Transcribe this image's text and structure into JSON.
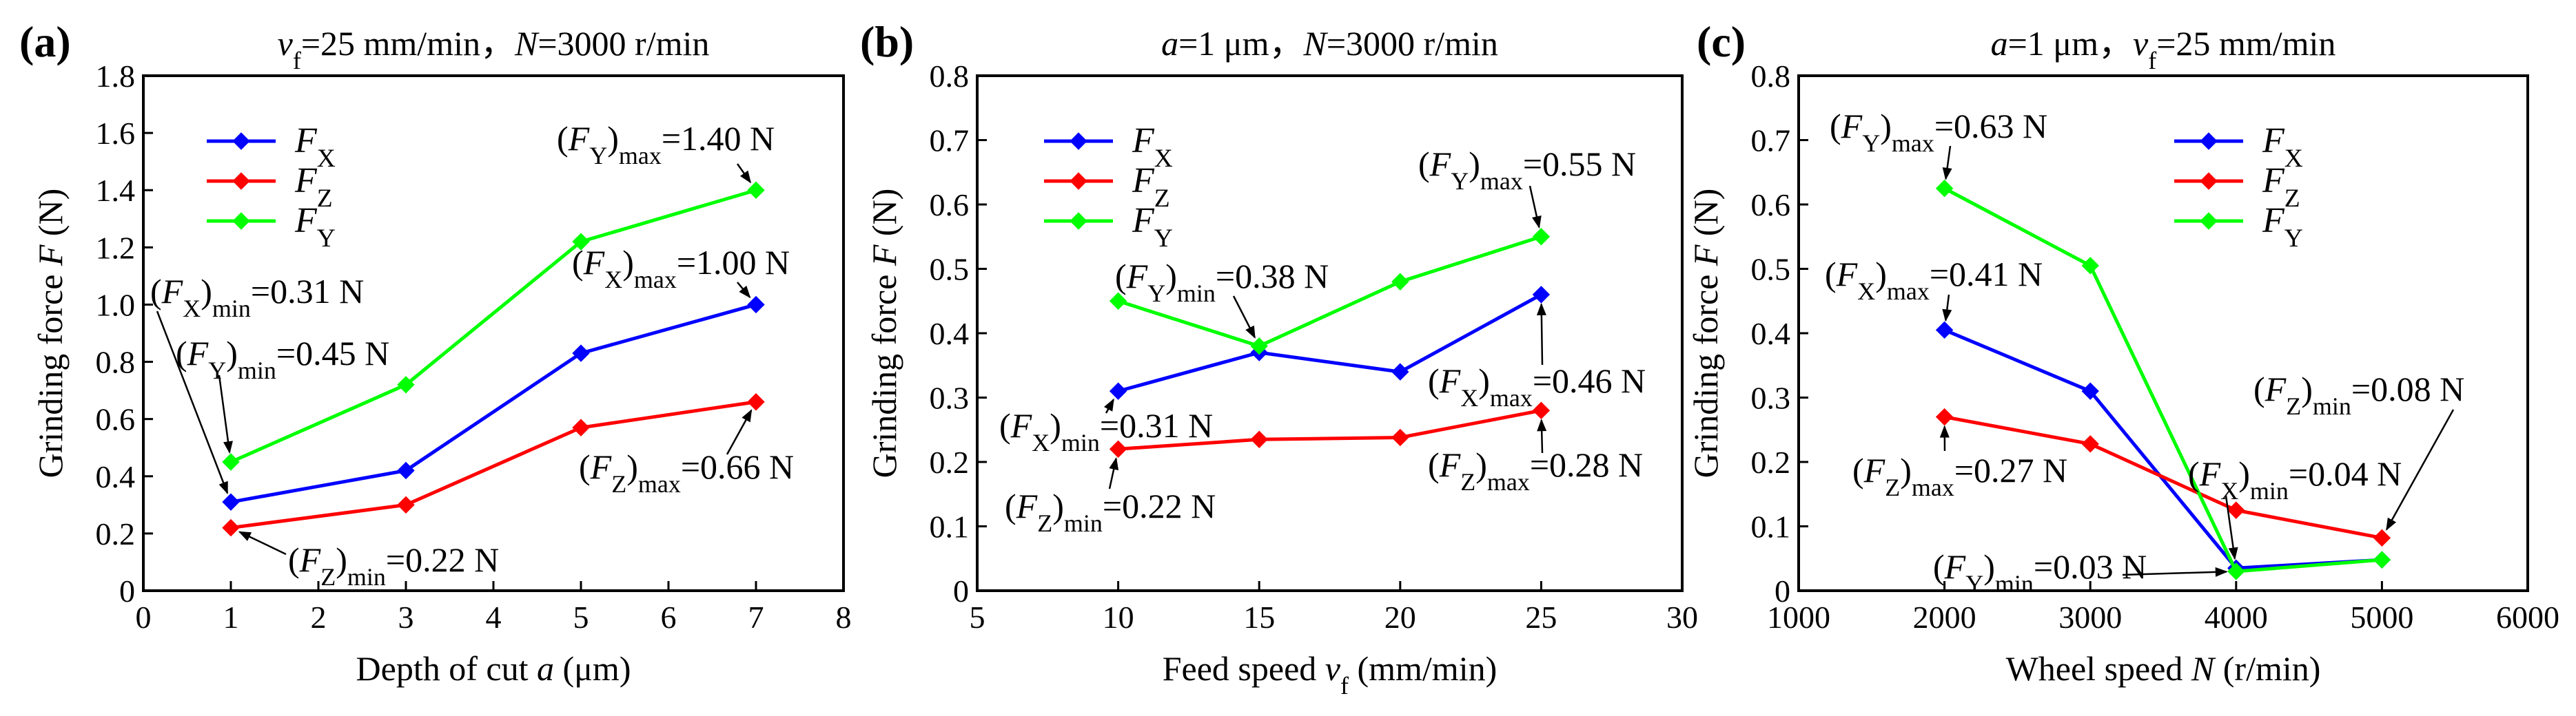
{
  "chart_data": [
    {
      "panel": "(a)",
      "type": "line",
      "title": "v_f=25 mm/min，N=3000 r/min",
      "title_parts": [
        {
          "t": "v",
          "italic": true
        },
        {
          "t": "f",
          "sub": true
        },
        {
          "t": "=25 mm/min，"
        },
        {
          "t": "N",
          "italic": true
        },
        {
          "t": "=3000 r/min"
        }
      ],
      "xlabel": "Depth of cut a (μm)",
      "xlabel_parts": [
        {
          "t": "Depth of cut "
        },
        {
          "t": "a",
          "italic": true
        },
        {
          "t": " (μm)"
        }
      ],
      "ylabel": "Grinding force F (N)",
      "ylabel_parts": [
        {
          "t": "Grinding force "
        },
        {
          "t": "F",
          "italic": true
        },
        {
          "t": " (N)"
        }
      ],
      "xlim": [
        0,
        8
      ],
      "ylim": [
        0,
        1.8
      ],
      "xticks": [
        0,
        1,
        2,
        3,
        4,
        5,
        6,
        7,
        8
      ],
      "yticks": [
        0,
        0.2,
        0.4,
        0.6,
        0.8,
        1.0,
        1.2,
        1.4,
        1.6,
        1.8
      ],
      "ytick_labels": [
        "0",
        "0.2",
        "0.4",
        "0.6",
        "0.8",
        "1.0",
        "1.2",
        "1.4",
        "1.6",
        "1.8"
      ],
      "xtick_labels": [
        "0",
        "1",
        "2",
        "3",
        "4",
        "5",
        "6",
        "7",
        "8"
      ],
      "x": [
        1,
        3,
        5,
        7
      ],
      "series": [
        {
          "name": "F_X",
          "sub": "X",
          "color": "#0000ff",
          "values": [
            0.31,
            0.42,
            0.83,
            1.0
          ]
        },
        {
          "name": "F_Z",
          "sub": "Z",
          "color": "#ff0000",
          "values": [
            0.22,
            0.3,
            0.57,
            0.66
          ]
        },
        {
          "name": "F_Y",
          "sub": "Y",
          "color": "#00ff00",
          "values": [
            0.45,
            0.72,
            1.22,
            1.4
          ]
        }
      ],
      "legend": "top-left",
      "annotations": [
        {
          "var": "F",
          "sub": "X",
          "kind": "min",
          "value": "=0.31 N"
        },
        {
          "var": "F",
          "sub": "Y",
          "kind": "min",
          "value": "=0.45 N"
        },
        {
          "var": "F",
          "sub": "Z",
          "kind": "min",
          "value": "=0.22 N"
        },
        {
          "var": "F",
          "sub": "Y",
          "kind": "max",
          "value": "=1.40 N"
        },
        {
          "var": "F",
          "sub": "X",
          "kind": "max",
          "value": "=1.00 N"
        },
        {
          "var": "F",
          "sub": "Z",
          "kind": "max",
          "value": "=0.66 N"
        }
      ]
    },
    {
      "panel": "(b)",
      "type": "line",
      "title": "a=1 μm，N=3000 r/min",
      "title_parts": [
        {
          "t": "a",
          "italic": true
        },
        {
          "t": "=1 μm，"
        },
        {
          "t": "N",
          "italic": true
        },
        {
          "t": "=3000 r/min"
        }
      ],
      "xlabel": "Feed speed v_f (mm/min)",
      "xlabel_parts": [
        {
          "t": "Feed speed "
        },
        {
          "t": "v",
          "italic": true
        },
        {
          "t": "f",
          "sub": true
        },
        {
          "t": " (mm/min)"
        }
      ],
      "ylabel": "Grinding force F (N)",
      "ylabel_parts": [
        {
          "t": "Grinding force "
        },
        {
          "t": "F",
          "italic": true
        },
        {
          "t": " (N)"
        }
      ],
      "xlim": [
        5,
        30
      ],
      "ylim": [
        0,
        0.8
      ],
      "xticks": [
        5,
        10,
        15,
        20,
        25,
        30
      ],
      "xtick_labels": [
        "5",
        "10",
        "15",
        "20",
        "25",
        "30"
      ],
      "yticks": [
        0,
        0.1,
        0.2,
        0.3,
        0.4,
        0.5,
        0.6,
        0.7,
        0.8
      ],
      "ytick_labels": [
        "0",
        "0.1",
        "0.2",
        "0.3",
        "0.4",
        "0.5",
        "0.6",
        "0.7",
        "0.8"
      ],
      "x": [
        10,
        15,
        20,
        25
      ],
      "series": [
        {
          "name": "F_X",
          "sub": "X",
          "color": "#0000ff",
          "values": [
            0.31,
            0.37,
            0.34,
            0.46
          ]
        },
        {
          "name": "F_Z",
          "sub": "Z",
          "color": "#ff0000",
          "values": [
            0.22,
            0.235,
            0.238,
            0.28
          ]
        },
        {
          "name": "F_Y",
          "sub": "Y",
          "color": "#00ff00",
          "values": [
            0.45,
            0.38,
            0.48,
            0.55
          ]
        }
      ],
      "legend": "top-left",
      "annotations": [
        {
          "var": "F",
          "sub": "Y",
          "kind": "min",
          "value": "=0.38 N"
        },
        {
          "var": "F",
          "sub": "Y",
          "kind": "max",
          "value": "=0.55 N"
        },
        {
          "var": "F",
          "sub": "X",
          "kind": "max",
          "value": "=0.46 N"
        },
        {
          "var": "F",
          "sub": "X",
          "kind": "min",
          "value": "=0.31 N"
        },
        {
          "var": "F",
          "sub": "Z",
          "kind": "max",
          "value": "=0.28 N"
        },
        {
          "var": "F",
          "sub": "Z",
          "kind": "min",
          "value": "=0.22 N"
        }
      ]
    },
    {
      "panel": "(c)",
      "type": "line",
      "title": "a=1 μm，v_f=25 mm/min",
      "title_parts": [
        {
          "t": "a",
          "italic": true
        },
        {
          "t": "=1 μm，"
        },
        {
          "t": "v",
          "italic": true
        },
        {
          "t": "f",
          "sub": true
        },
        {
          "t": "=25 mm/min"
        }
      ],
      "xlabel": "Wheel speed N (r/min)",
      "xlabel_parts": [
        {
          "t": "Wheel speed "
        },
        {
          "t": "N",
          "italic": true
        },
        {
          "t": " (r/min)"
        }
      ],
      "ylabel": "Grinding force F (N)",
      "ylabel_parts": [
        {
          "t": "Grinding force "
        },
        {
          "t": "F",
          "italic": true
        },
        {
          "t": " (N)"
        }
      ],
      "xlim": [
        1000,
        6000
      ],
      "ylim": [
        0,
        0.8
      ],
      "xticks": [
        1000,
        2000,
        3000,
        4000,
        5000,
        6000
      ],
      "xtick_labels": [
        "1000",
        "2000",
        "3000",
        "4000",
        "5000",
        "6000"
      ],
      "yticks": [
        0,
        0.1,
        0.2,
        0.3,
        0.4,
        0.5,
        0.6,
        0.7,
        0.8
      ],
      "ytick_labels": [
        "0",
        "0.1",
        "0.2",
        "0.3",
        "0.4",
        "0.5",
        "0.6",
        "0.7",
        "0.8"
      ],
      "x": [
        2000,
        3000,
        4000,
        5000
      ],
      "series": [
        {
          "name": "F_X",
          "sub": "X",
          "color": "#0000ff",
          "values": [
            0.405,
            0.31,
            0.035,
            0.048
          ]
        },
        {
          "name": "F_Z",
          "sub": "Z",
          "color": "#ff0000",
          "values": [
            0.27,
            0.228,
            0.125,
            0.082
          ]
        },
        {
          "name": "F_Y",
          "sub": "Y",
          "color": "#00ff00",
          "values": [
            0.625,
            0.505,
            0.03,
            0.048
          ]
        }
      ],
      "legend": "top-right",
      "annotations": [
        {
          "var": "F",
          "sub": "Y",
          "kind": "max",
          "value": "=0.63 N"
        },
        {
          "var": "F",
          "sub": "X",
          "kind": "max",
          "value": "=0.41 N"
        },
        {
          "var": "F",
          "sub": "Z",
          "kind": "min",
          "value": "=0.08 N"
        },
        {
          "var": "F",
          "sub": "Z",
          "kind": "max",
          "value": "=0.27 N"
        },
        {
          "var": "F",
          "sub": "X",
          "kind": "min",
          "value": "=0.04 N"
        },
        {
          "var": "F",
          "sub": "Y",
          "kind": "min",
          "value": "=0.03 N"
        }
      ]
    }
  ]
}
